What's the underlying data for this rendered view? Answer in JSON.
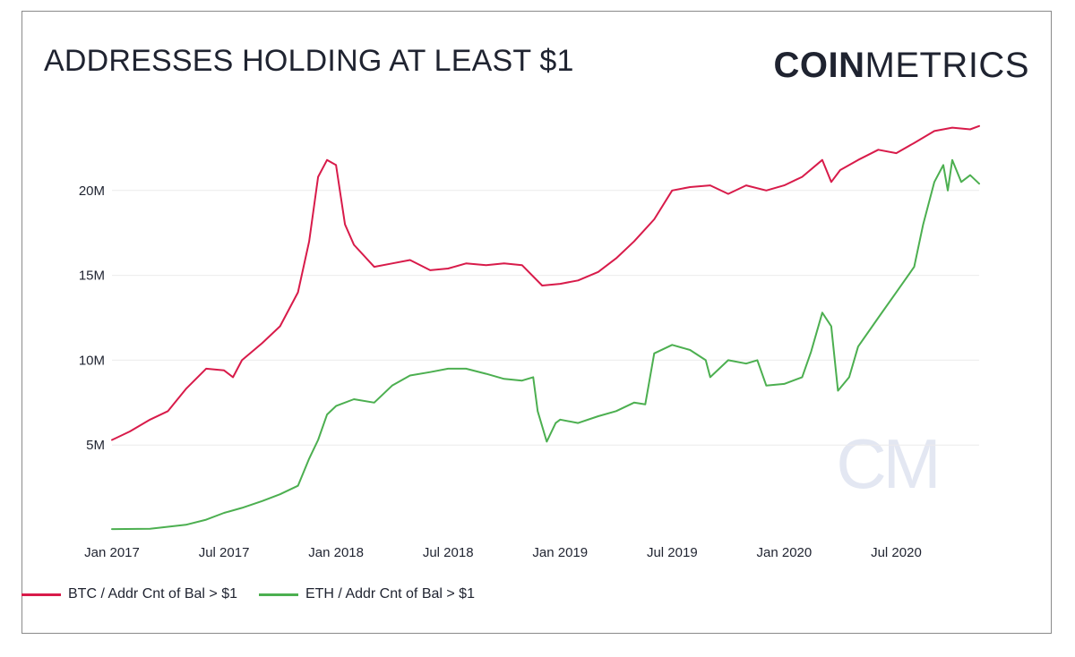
{
  "header": {
    "title": "ADDRESSES HOLDING AT LEAST $1",
    "logo_bold": "COIN",
    "logo_light": "METRICS"
  },
  "watermark": "CM",
  "colors": {
    "btc": "#d81b4a",
    "eth": "#4caf50",
    "grid": "#ececec",
    "text": "#1f2330",
    "watermark": "#e3e7f2"
  },
  "chart_data": {
    "type": "line",
    "title": "ADDRESSES HOLDING AT LEAST $1",
    "xlabel": "",
    "ylabel": "",
    "x_ticks": [
      "Jan 2017",
      "Jul 2017",
      "Jan 2018",
      "Jul 2018",
      "Jan 2019",
      "Jul 2019",
      "Jan 2020",
      "Jul 2020"
    ],
    "y_ticks": [
      "5M",
      "10M",
      "15M",
      "20M"
    ],
    "y_tick_values": [
      5,
      10,
      15,
      20
    ],
    "ylim": [
      0,
      25
    ],
    "y_unit": "millions",
    "x_unit": "year",
    "xlim": [
      2017.0,
      2020.87
    ],
    "grid": true,
    "legend_position": "bottom-left",
    "series": [
      {
        "name": "BTC / Addr Cnt of Bal > $1",
        "color": "#d81b4a",
        "points": [
          [
            2017.0,
            5.3
          ],
          [
            2017.08,
            5.8
          ],
          [
            2017.17,
            6.5
          ],
          [
            2017.25,
            7.0
          ],
          [
            2017.33,
            8.3
          ],
          [
            2017.42,
            9.5
          ],
          [
            2017.5,
            9.4
          ],
          [
            2017.54,
            9.0
          ],
          [
            2017.58,
            10.0
          ],
          [
            2017.67,
            11.0
          ],
          [
            2017.75,
            12.0
          ],
          [
            2017.83,
            14.0
          ],
          [
            2017.88,
            17.0
          ],
          [
            2017.92,
            20.8
          ],
          [
            2017.96,
            21.8
          ],
          [
            2018.0,
            21.5
          ],
          [
            2018.04,
            18.0
          ],
          [
            2018.08,
            16.8
          ],
          [
            2018.17,
            15.5
          ],
          [
            2018.25,
            15.7
          ],
          [
            2018.33,
            15.9
          ],
          [
            2018.42,
            15.3
          ],
          [
            2018.5,
            15.4
          ],
          [
            2018.58,
            15.7
          ],
          [
            2018.67,
            15.6
          ],
          [
            2018.75,
            15.7
          ],
          [
            2018.83,
            15.6
          ],
          [
            2018.92,
            14.4
          ],
          [
            2019.0,
            14.5
          ],
          [
            2019.08,
            14.7
          ],
          [
            2019.17,
            15.2
          ],
          [
            2019.25,
            16.0
          ],
          [
            2019.33,
            17.0
          ],
          [
            2019.42,
            18.3
          ],
          [
            2019.5,
            20.0
          ],
          [
            2019.58,
            20.2
          ],
          [
            2019.67,
            20.3
          ],
          [
            2019.75,
            19.8
          ],
          [
            2019.83,
            20.3
          ],
          [
            2019.92,
            20.0
          ],
          [
            2020.0,
            20.3
          ],
          [
            2020.08,
            20.8
          ],
          [
            2020.17,
            21.8
          ],
          [
            2020.21,
            20.5
          ],
          [
            2020.25,
            21.2
          ],
          [
            2020.33,
            21.8
          ],
          [
            2020.42,
            22.4
          ],
          [
            2020.5,
            22.2
          ],
          [
            2020.58,
            22.8
          ],
          [
            2020.67,
            23.5
          ],
          [
            2020.75,
            23.7
          ],
          [
            2020.83,
            23.6
          ],
          [
            2020.87,
            23.8
          ]
        ]
      },
      {
        "name": "ETH / Addr Cnt of Bal > $1",
        "color": "#4caf50",
        "points": [
          [
            2017.0,
            0.05
          ],
          [
            2017.17,
            0.07
          ],
          [
            2017.33,
            0.3
          ],
          [
            2017.42,
            0.6
          ],
          [
            2017.5,
            1.0
          ],
          [
            2017.58,
            1.3
          ],
          [
            2017.67,
            1.7
          ],
          [
            2017.75,
            2.1
          ],
          [
            2017.83,
            2.6
          ],
          [
            2017.88,
            4.2
          ],
          [
            2017.92,
            5.3
          ],
          [
            2017.96,
            6.8
          ],
          [
            2018.0,
            7.3
          ],
          [
            2018.08,
            7.7
          ],
          [
            2018.17,
            7.5
          ],
          [
            2018.25,
            8.5
          ],
          [
            2018.33,
            9.1
          ],
          [
            2018.42,
            9.3
          ],
          [
            2018.5,
            9.5
          ],
          [
            2018.58,
            9.5
          ],
          [
            2018.67,
            9.2
          ],
          [
            2018.75,
            8.9
          ],
          [
            2018.83,
            8.8
          ],
          [
            2018.88,
            9.0
          ],
          [
            2018.9,
            7.0
          ],
          [
            2018.94,
            5.2
          ],
          [
            2018.98,
            6.3
          ],
          [
            2019.0,
            6.5
          ],
          [
            2019.08,
            6.3
          ],
          [
            2019.17,
            6.7
          ],
          [
            2019.25,
            7.0
          ],
          [
            2019.33,
            7.5
          ],
          [
            2019.38,
            7.4
          ],
          [
            2019.42,
            10.4
          ],
          [
            2019.5,
            10.9
          ],
          [
            2019.58,
            10.6
          ],
          [
            2019.65,
            10.0
          ],
          [
            2019.67,
            9.0
          ],
          [
            2019.75,
            10.0
          ],
          [
            2019.83,
            9.8
          ],
          [
            2019.88,
            10.0
          ],
          [
            2019.92,
            8.5
          ],
          [
            2020.0,
            8.6
          ],
          [
            2020.08,
            9.0
          ],
          [
            2020.12,
            10.5
          ],
          [
            2020.17,
            12.8
          ],
          [
            2020.21,
            12.0
          ],
          [
            2020.24,
            8.2
          ],
          [
            2020.29,
            9.0
          ],
          [
            2020.33,
            10.8
          ],
          [
            2020.42,
            12.5
          ],
          [
            2020.5,
            14.0
          ],
          [
            2020.58,
            15.5
          ],
          [
            2020.62,
            18.0
          ],
          [
            2020.67,
            20.5
          ],
          [
            2020.71,
            21.5
          ],
          [
            2020.73,
            20.0
          ],
          [
            2020.75,
            21.8
          ],
          [
            2020.79,
            20.5
          ],
          [
            2020.83,
            20.9
          ],
          [
            2020.87,
            20.4
          ]
        ]
      }
    ]
  }
}
